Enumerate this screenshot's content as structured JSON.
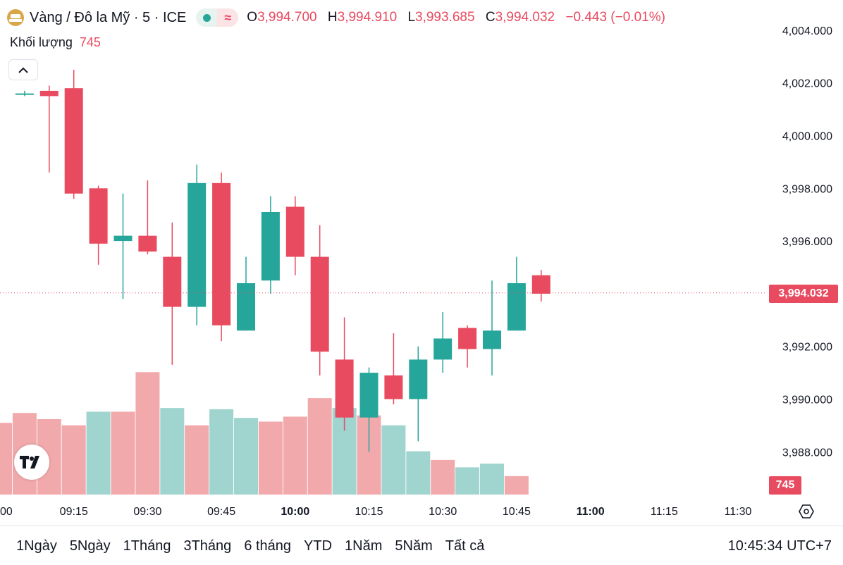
{
  "header": {
    "symbol": "Vàng / Đô la Mỹ · 5 · ICE",
    "market_status_icon": "green-dot-icon",
    "indicator_icon": "wave-icon",
    "ohlc": {
      "o_label": "O",
      "o_value": "3,994.700",
      "h_label": "H",
      "h_value": "3,994.910",
      "l_label": "L",
      "l_value": "3,993.685",
      "c_label": "C",
      "c_value": "3,994.032",
      "change": "−0.443 (−0.01%)"
    },
    "volume_label": "Khối lượng",
    "volume_value": "745"
  },
  "price_tag": "3,994.032",
  "volume_tag": "745",
  "bottom_bar": {
    "ranges": [
      "1Ngày",
      "5Ngày",
      "1Tháng",
      "3Tháng",
      "6 tháng",
      "YTD",
      "1Năm",
      "5Năm",
      "Tất cả"
    ],
    "clock": "10:45:34 UTC+7"
  },
  "colors": {
    "up": "#26a69a",
    "down": "#e84a5f",
    "up_volume": "#9fd4cf",
    "down_volume": "#f2a9ac"
  },
  "chart_data": {
    "type": "candlestick",
    "y_ticks": [
      "4,004.000",
      "4,002.000",
      "4,000.000",
      "3,998.000",
      "3,996.000",
      "3,994.000",
      "3,992.000",
      "3,990.000",
      "3,988.000"
    ],
    "y_tick_values": [
      4004,
      4002,
      4000,
      3998,
      3996,
      3994,
      3992,
      3990,
      3988
    ],
    "x_ticks": [
      "00",
      "09:15",
      "09:30",
      "09:45",
      "10:00",
      "10:15",
      "10:30",
      "10:45",
      "11:00",
      "11:15",
      "11:30"
    ],
    "x_tick_minutes": [
      0,
      15,
      30,
      45,
      60,
      75,
      90,
      105,
      120,
      135,
      150
    ],
    "x_tick_bold": [
      "10:00",
      "11:00"
    ],
    "current_price": 3994.032,
    "candles": [
      {
        "t": 5,
        "o": 4001.6,
        "h": 4001.7,
        "l": 4001.5,
        "c": 4001.6
      },
      {
        "t": 10,
        "o": 4001.7,
        "h": 4001.9,
        "l": 3998.6,
        "c": 4001.5
      },
      {
        "t": 15,
        "o": 4001.8,
        "h": 4002.5,
        "l": 3997.6,
        "c": 3997.8
      },
      {
        "t": 20,
        "o": 3998.0,
        "h": 3998.1,
        "l": 3995.1,
        "c": 3995.9
      },
      {
        "t": 25,
        "o": 3996.0,
        "h": 3997.8,
        "l": 3993.8,
        "c": 3996.2
      },
      {
        "t": 30,
        "o": 3996.2,
        "h": 3998.3,
        "l": 3995.5,
        "c": 3995.6
      },
      {
        "t": 35,
        "o": 3995.4,
        "h": 3996.7,
        "l": 3991.3,
        "c": 3993.5
      },
      {
        "t": 40,
        "o": 3993.5,
        "h": 3998.9,
        "l": 3992.8,
        "c": 3998.2
      },
      {
        "t": 45,
        "o": 3998.2,
        "h": 3998.6,
        "l": 3992.2,
        "c": 3992.8
      },
      {
        "t": 50,
        "o": 3992.6,
        "h": 3995.4,
        "l": 3992.6,
        "c": 3994.4
      },
      {
        "t": 55,
        "o": 3994.5,
        "h": 3997.7,
        "l": 3994.0,
        "c": 3997.1
      },
      {
        "t": 60,
        "o": 3997.3,
        "h": 3997.7,
        "l": 3994.7,
        "c": 3995.4
      },
      {
        "t": 65,
        "o": 3995.4,
        "h": 3996.6,
        "l": 3990.9,
        "c": 3991.8
      },
      {
        "t": 70,
        "o": 3991.5,
        "h": 3993.1,
        "l": 3988.8,
        "c": 3989.3
      },
      {
        "t": 75,
        "o": 3989.3,
        "h": 3991.2,
        "l": 3988.0,
        "c": 3991.0
      },
      {
        "t": 80,
        "o": 3990.9,
        "h": 3992.5,
        "l": 3989.8,
        "c": 3990.0
      },
      {
        "t": 85,
        "o": 3990.0,
        "h": 3992.0,
        "l": 3988.4,
        "c": 3991.5
      },
      {
        "t": 90,
        "o": 3991.5,
        "h": 3993.3,
        "l": 3991.0,
        "c": 3992.3
      },
      {
        "t": 95,
        "o": 3992.7,
        "h": 3992.8,
        "l": 3991.2,
        "c": 3991.9
      },
      {
        "t": 100,
        "o": 3991.9,
        "h": 3994.5,
        "l": 3990.9,
        "c": 3992.6
      },
      {
        "t": 105,
        "o": 3992.6,
        "h": 3995.4,
        "l": 3992.6,
        "c": 3994.4
      },
      {
        "t": 110,
        "o": 3994.7,
        "h": 3994.9,
        "l": 3993.7,
        "c": 3994.0
      }
    ],
    "volume": [
      {
        "t": 0,
        "v": 2900,
        "dir": "down"
      },
      {
        "t": 5,
        "v": 3300,
        "dir": "down"
      },
      {
        "t": 10,
        "v": 3050,
        "dir": "down"
      },
      {
        "t": 15,
        "v": 2800,
        "dir": "down"
      },
      {
        "t": 20,
        "v": 3350,
        "dir": "up"
      },
      {
        "t": 25,
        "v": 3350,
        "dir": "down"
      },
      {
        "t": 30,
        "v": 4950,
        "dir": "down"
      },
      {
        "t": 35,
        "v": 3500,
        "dir": "up"
      },
      {
        "t": 40,
        "v": 2800,
        "dir": "down"
      },
      {
        "t": 45,
        "v": 3450,
        "dir": "up"
      },
      {
        "t": 50,
        "v": 3100,
        "dir": "up"
      },
      {
        "t": 55,
        "v": 2950,
        "dir": "down"
      },
      {
        "t": 60,
        "v": 3150,
        "dir": "down"
      },
      {
        "t": 65,
        "v": 3900,
        "dir": "down"
      },
      {
        "t": 70,
        "v": 3500,
        "dir": "up"
      },
      {
        "t": 75,
        "v": 3200,
        "dir": "down"
      },
      {
        "t": 80,
        "v": 2800,
        "dir": "up"
      },
      {
        "t": 85,
        "v": 1750,
        "dir": "up"
      },
      {
        "t": 90,
        "v": 1400,
        "dir": "down"
      },
      {
        "t": 95,
        "v": 1100,
        "dir": "up"
      },
      {
        "t": 100,
        "v": 1250,
        "dir": "up"
      },
      {
        "t": 105,
        "v": 745,
        "dir": "down"
      }
    ]
  }
}
